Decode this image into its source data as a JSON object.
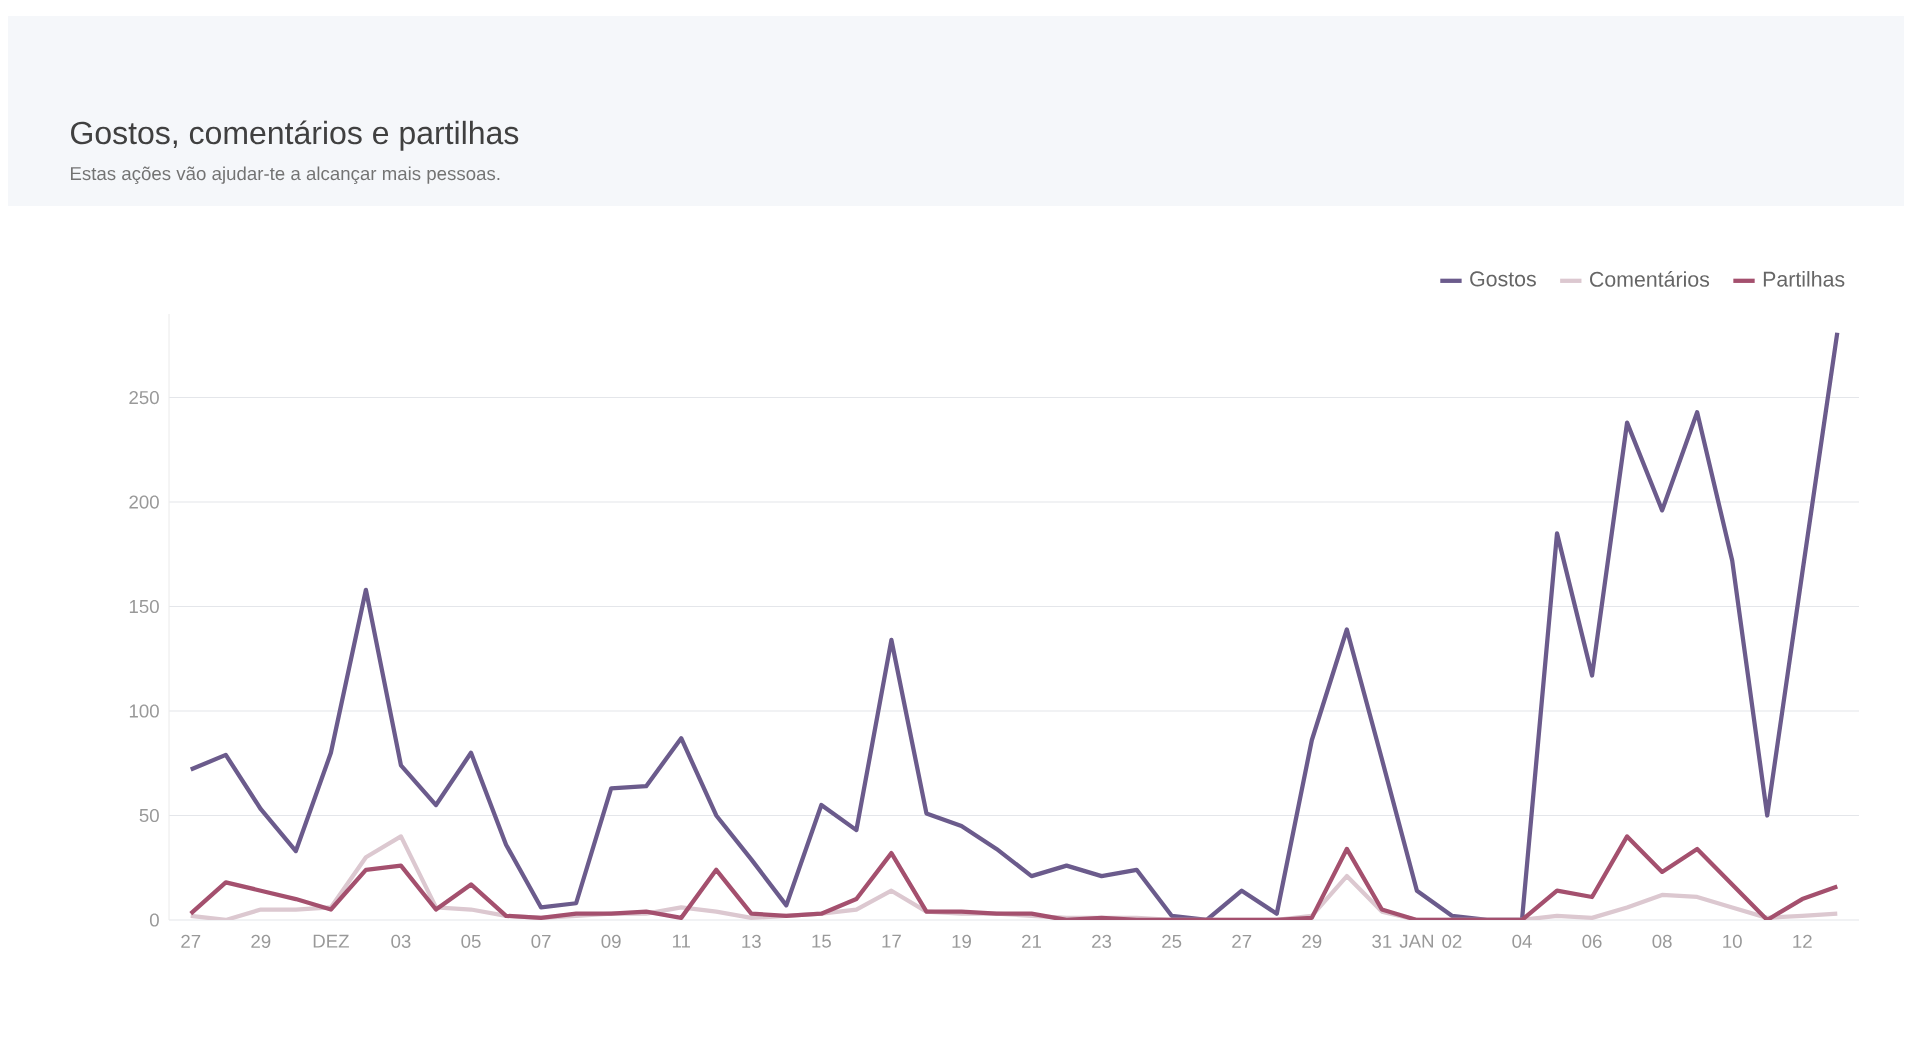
{
  "chart_data": {
    "type": "line",
    "title": "Gostos, comentários e partilhas",
    "subtitle": "Estas ações vão ajudar-te a alcançar mais pessoas.",
    "categories": [
      "27",
      null,
      "29",
      null,
      "DEZ",
      null,
      "03",
      null,
      "05",
      null,
      "07",
      null,
      "09",
      null,
      "11",
      null,
      "13",
      null,
      "15",
      null,
      "17",
      null,
      "19",
      null,
      "21",
      null,
      "23",
      null,
      "25",
      null,
      "27",
      null,
      "29",
      null,
      "31",
      "JAN",
      "02",
      null,
      "04",
      null,
      "06",
      null,
      "08",
      null,
      "10",
      null,
      "12",
      null
    ],
    "series": [
      {
        "name": "Gostos",
        "color": "#6b5b8c",
        "values": [
          72,
          79,
          53,
          33,
          80,
          158,
          74,
          55,
          80,
          36,
          6,
          8,
          63,
          64,
          87,
          50,
          29,
          7,
          55,
          43,
          134,
          51,
          45,
          34,
          21,
          26,
          21,
          24,
          2,
          0,
          14,
          3,
          86,
          139,
          77,
          14,
          2,
          0,
          0,
          185,
          117,
          238,
          196,
          243,
          172,
          50,
          166,
          281
        ]
      },
      {
        "name": "Comentários",
        "color": "#dcc8d0",
        "values": [
          2,
          0,
          5,
          5,
          6,
          30,
          40,
          6,
          5,
          2,
          1,
          2,
          3,
          3,
          6,
          4,
          1,
          2,
          3,
          5,
          14,
          4,
          3,
          3,
          2,
          1,
          1,
          1,
          0,
          0,
          0,
          0,
          2,
          21,
          4,
          0,
          0,
          0,
          0,
          2,
          1,
          6,
          12,
          11,
          6,
          1,
          2,
          3
        ]
      },
      {
        "name": "Partilhas",
        "color": "#a4506e",
        "values": [
          3,
          18,
          14,
          10,
          5,
          24,
          26,
          5,
          17,
          2,
          1,
          3,
          3,
          4,
          1,
          24,
          3,
          2,
          3,
          10,
          32,
          4,
          4,
          3,
          3,
          0,
          1,
          0,
          0,
          0,
          0,
          0,
          1,
          34,
          5,
          0,
          0,
          0,
          0,
          14,
          11,
          40,
          23,
          34,
          17,
          0,
          10,
          16
        ]
      }
    ],
    "ylim": [
      0,
      290
    ],
    "yticks": [
      0,
      50,
      100,
      150,
      200,
      250
    ],
    "grid": "y",
    "legend": "top right",
    "marker": "none",
    "line_style": "solid"
  }
}
